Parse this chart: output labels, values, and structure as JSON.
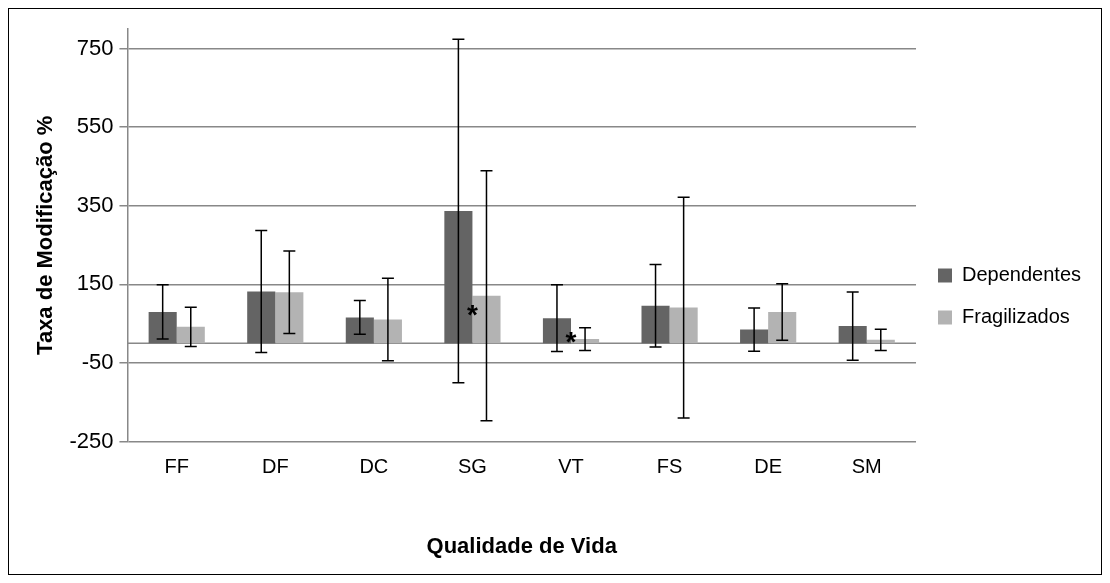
{
  "chart_data": {
    "type": "bar",
    "xlabel": "Qualidade de Vida",
    "ylabel": "Taxa de Modificação %",
    "categories": [
      "FF",
      "DF",
      "DC",
      "SG",
      "VT",
      "FS",
      "DE",
      "SM"
    ],
    "series": [
      {
        "name": "Dependentes",
        "color": "#646464",
        "values": [
          80,
          132,
          66,
          337,
          64,
          96,
          35,
          44
        ],
        "errors": [
          69,
          155,
          43,
          437,
          85,
          105,
          55,
          87
        ]
      },
      {
        "name": "Fragilizados",
        "color": "#b3b3b3",
        "values": [
          42,
          130,
          61,
          121,
          11,
          91,
          80,
          9
        ],
        "errors": [
          50,
          105,
          105,
          318,
          29,
          281,
          72,
          27
        ]
      }
    ],
    "ylim": [
      -250,
      800
    ],
    "yticks": [
      -250,
      -50,
      150,
      350,
      550,
      750
    ],
    "grid": "y",
    "legend": "right",
    "ref_lines": [
      {
        "axis": "y",
        "value": 0,
        "color": "#888888"
      }
    ],
    "annotations": [
      {
        "text": "*",
        "x": "SG",
        "y": 84
      },
      {
        "text": "*",
        "x": "VT",
        "y": 16
      }
    ]
  }
}
